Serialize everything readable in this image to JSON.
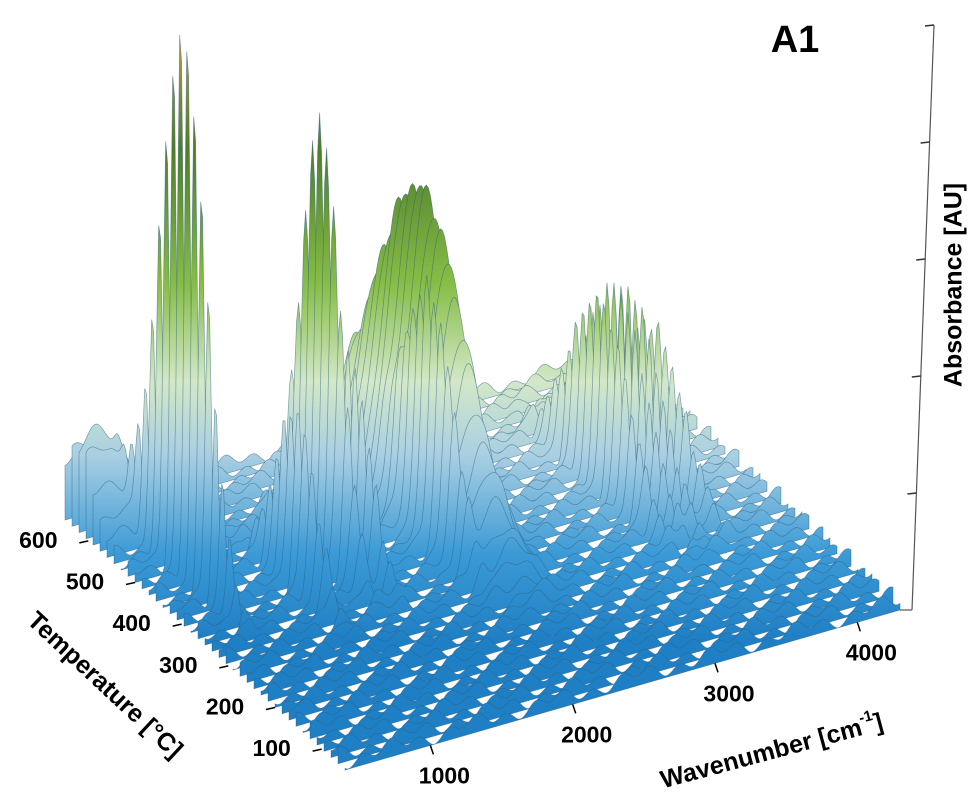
{
  "chart_data": {
    "type": "surface3d",
    "title": "A1",
    "x_label": {
      "text": "Wavenumber [cm",
      "superscript": "-1",
      "suffix": "]"
    },
    "y_label": "Temperature [°C]",
    "z_label": "Absorbance [AU]",
    "xlim": [
      400,
      4300
    ],
    "xticks": [
      1000,
      2000,
      3000,
      4000
    ],
    "ylim": [
      50,
      650
    ],
    "yticks": [
      100,
      200,
      300,
      400,
      500,
      600
    ],
    "zlim": [
      0,
      1
    ],
    "zticks": [
      0.2,
      0.4,
      0.6,
      0.8,
      1
    ],
    "peaks": {
      "x": [
        670,
        1500,
        2350,
        1200,
        1650,
        2150,
        3400,
        3520,
        3620,
        3780,
        500
      ],
      "y": [
        480,
        438,
        482,
        400,
        420,
        400,
        420,
        420,
        420,
        420,
        620
      ],
      "z": [
        0.94,
        0.75,
        0.54,
        0.3,
        0.34,
        0.34,
        0.32,
        0.33,
        0.32,
        0.25,
        0.15
      ],
      "x_spread": [
        30,
        45,
        170,
        40,
        40,
        45,
        40,
        35,
        35,
        40,
        300
      ],
      "y_spread": [
        70,
        60,
        130,
        60,
        60,
        70,
        90,
        90,
        90,
        90,
        40
      ]
    }
  }
}
